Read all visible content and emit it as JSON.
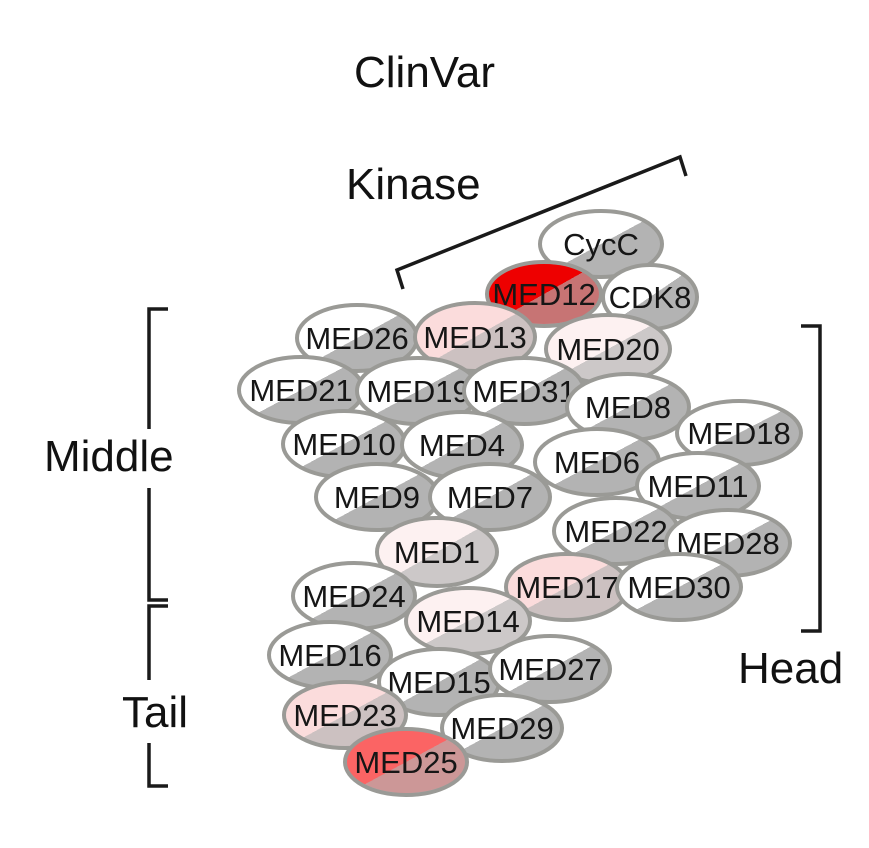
{
  "title": "ClinVar",
  "modules": {
    "kinase": "Kinase",
    "middle": "Middle",
    "head": "Head",
    "tail": "Tail"
  },
  "colors": {
    "outline": "#9a9a96",
    "shadow_half": "#b3b3b3",
    "none": "#ffffff",
    "very_low": "#fdf1f1",
    "low": "#fbdcdc",
    "medium": "#fb6464",
    "high": "#ee0000"
  },
  "subunits": [
    {
      "name": "CycC",
      "module": "kinase",
      "level": "none"
    },
    {
      "name": "MED12",
      "module": "kinase",
      "level": "high"
    },
    {
      "name": "CDK8",
      "module": "kinase",
      "level": "none"
    },
    {
      "name": "MED26",
      "module": "middle",
      "level": "none"
    },
    {
      "name": "MED13",
      "module": "kinase",
      "level": "low"
    },
    {
      "name": "MED20",
      "module": "head",
      "level": "very_low"
    },
    {
      "name": "MED21",
      "module": "middle",
      "level": "none"
    },
    {
      "name": "MED19",
      "module": "middle",
      "level": "none"
    },
    {
      "name": "MED31",
      "module": "middle",
      "level": "none"
    },
    {
      "name": "MED8",
      "module": "head",
      "level": "none"
    },
    {
      "name": "MED18",
      "module": "head",
      "level": "none"
    },
    {
      "name": "MED10",
      "module": "middle",
      "level": "none"
    },
    {
      "name": "MED4",
      "module": "middle",
      "level": "none"
    },
    {
      "name": "MED6",
      "module": "head",
      "level": "none"
    },
    {
      "name": "MED11",
      "module": "head",
      "level": "none"
    },
    {
      "name": "MED9",
      "module": "middle",
      "level": "none"
    },
    {
      "name": "MED7",
      "module": "middle",
      "level": "none"
    },
    {
      "name": "MED22",
      "module": "head",
      "level": "none"
    },
    {
      "name": "MED28",
      "module": "head",
      "level": "none"
    },
    {
      "name": "MED1",
      "module": "middle",
      "level": "very_low"
    },
    {
      "name": "MED17",
      "module": "head",
      "level": "low"
    },
    {
      "name": "MED30",
      "module": "head",
      "level": "none"
    },
    {
      "name": "MED24",
      "module": "tail",
      "level": "none"
    },
    {
      "name": "MED14",
      "module": "tail",
      "level": "very_low"
    },
    {
      "name": "MED16",
      "module": "tail",
      "level": "none"
    },
    {
      "name": "MED15",
      "module": "tail",
      "level": "none"
    },
    {
      "name": "MED27",
      "module": "tail",
      "level": "none"
    },
    {
      "name": "MED23",
      "module": "tail",
      "level": "low"
    },
    {
      "name": "MED29",
      "module": "tail",
      "level": "none"
    },
    {
      "name": "MED25",
      "module": "tail",
      "level": "medium"
    }
  ]
}
